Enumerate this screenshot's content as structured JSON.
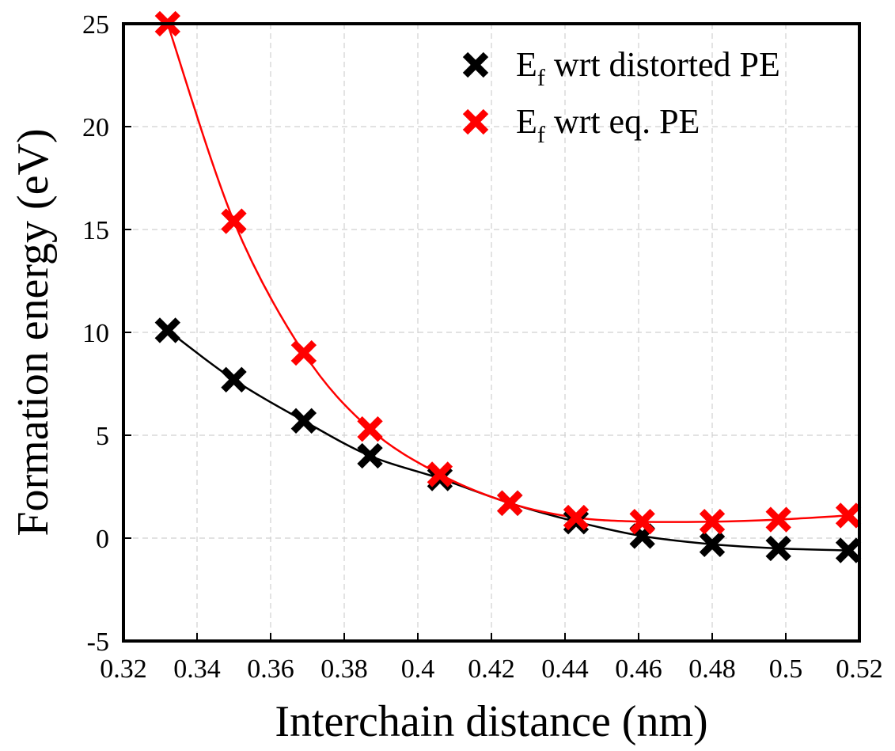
{
  "chart_data": {
    "type": "scatter",
    "xlabel": "Interchain distance (nm)",
    "ylabel": "Formation energy (eV)",
    "xlim": [
      0.32,
      0.52
    ],
    "ylim": [
      -5,
      25
    ],
    "x_ticks": [
      "0.32",
      "0.34",
      "0.36",
      "0.38",
      "0.4",
      "0.42",
      "0.44",
      "0.46",
      "0.48",
      "0.5",
      "0.52"
    ],
    "y_ticks": [
      "-5",
      "0",
      "5",
      "10",
      "15",
      "20",
      "25"
    ],
    "x_tick_values": [
      0.32,
      0.34,
      0.36,
      0.38,
      0.4,
      0.42,
      0.44,
      0.46,
      0.48,
      0.5,
      0.52
    ],
    "y_tick_values": [
      -5,
      0,
      5,
      10,
      15,
      20,
      25
    ],
    "grid": true,
    "legend_position": "top-right",
    "series": [
      {
        "name": "E_f wrt distorted PE",
        "legend_main": "E",
        "legend_sub": "f",
        "legend_rest": " wrt distorted PE",
        "color": "#000000",
        "marker": "x",
        "fit_line": true,
        "x": [
          0.332,
          0.35,
          0.369,
          0.387,
          0.406,
          0.425,
          0.443,
          0.461,
          0.48,
          0.498,
          0.517
        ],
        "y": [
          10.1,
          7.7,
          5.7,
          4.0,
          2.9,
          1.7,
          0.8,
          0.1,
          -0.3,
          -0.5,
          -0.6
        ]
      },
      {
        "name": "E_f wrt eq. PE",
        "legend_main": "E",
        "legend_sub": "f",
        "legend_rest": " wrt eq. PE",
        "color": "#ff0000",
        "marker": "x",
        "fit_line": true,
        "x": [
          0.332,
          0.35,
          0.369,
          0.387,
          0.406,
          0.425,
          0.443,
          0.461,
          0.48,
          0.498,
          0.517
        ],
        "y": [
          25.0,
          15.4,
          9.0,
          5.3,
          3.1,
          1.7,
          1.0,
          0.8,
          0.8,
          0.9,
          1.1
        ]
      }
    ]
  }
}
